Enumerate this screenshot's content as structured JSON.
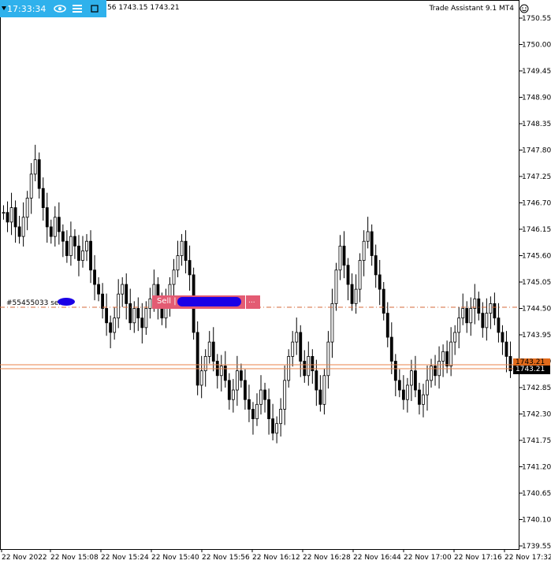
{
  "header": {
    "clock": "17:33:34",
    "ohlc_text": "56 1743.15 1743.21",
    "assistant_title": "Trade Assistant 9.1 MT4",
    "icons": [
      "triangle-down-icon",
      "eye-icon",
      "menu-icon",
      "minimize-icon",
      "smiley-icon"
    ]
  },
  "trade": {
    "ticket_label": "#55455033 sell",
    "sell_label": "Sell |",
    "more_label": "..."
  },
  "price_axis": {
    "ticks": [
      "1750.55",
      "1750.00",
      "1749.45",
      "1748.90",
      "1748.35",
      "1747.80",
      "1747.25",
      "1746.70",
      "1746.15",
      "1745.60",
      "1745.05",
      "1744.50",
      "1743.95",
      "1743.40",
      "1742.85",
      "1742.30",
      "1741.75",
      "1741.20",
      "1740.65",
      "1740.10",
      "1739.55"
    ],
    "bid_tag": "1743.21",
    "ask_tag": "1743.21"
  },
  "time_axis": {
    "ticks": [
      "22 Nov 2022",
      "22 Nov 15:08",
      "22 Nov 15:24",
      "22 Nov 15:40",
      "22 Nov 15:56",
      "22 Nov 16:12",
      "22 Nov 16:28",
      "22 Nov 16:44",
      "22 Nov 17:00",
      "22 Nov 17:16",
      "22 Nov 17:32"
    ]
  },
  "colors": {
    "candle_up": "#ffffff",
    "candle_down": "#000000",
    "bid_line": "#e8834a",
    "ask_tag_bg": "#000000",
    "bid_tag_bg": "#e06a1b",
    "trade_line": "#d56a3a",
    "panel_bg": "#2fb1ec",
    "sell_box_bg": "#e35b73"
  },
  "chart_data": {
    "type": "candlestick",
    "ylim": [
      1739.55,
      1751.0
    ],
    "closes": [
      1746.5,
      1746.3,
      1746.6,
      1746.2,
      1746.0,
      1746.4,
      1746.8,
      1747.3,
      1747.6,
      1747.0,
      1746.6,
      1746.2,
      1746.0,
      1746.4,
      1746.1,
      1745.9,
      1745.6,
      1746.0,
      1745.8,
      1745.5,
      1745.7,
      1745.9,
      1745.3,
      1745.0,
      1744.8,
      1744.5,
      1744.2,
      1744.0,
      1744.3,
      1744.8,
      1745.0,
      1744.6,
      1744.2,
      1744.5,
      1744.3,
      1744.1,
      1744.5,
      1744.7,
      1745.0,
      1744.6,
      1744.3,
      1744.6,
      1745.0,
      1745.3,
      1745.6,
      1745.9,
      1745.5,
      1745.2,
      1744.0,
      1742.9,
      1743.2,
      1743.5,
      1743.8,
      1743.4,
      1743.1,
      1743.3,
      1743.0,
      1742.6,
      1742.8,
      1743.2,
      1743.0,
      1742.6,
      1742.4,
      1742.2,
      1742.5,
      1742.8,
      1742.6,
      1742.2,
      1741.9,
      1742.1,
      1742.4,
      1743.0,
      1743.5,
      1743.8,
      1744.0,
      1743.4,
      1743.1,
      1743.5,
      1743.2,
      1742.8,
      1742.5,
      1743.1,
      1743.8,
      1744.6,
      1745.3,
      1745.8,
      1745.4,
      1745.0,
      1744.6,
      1744.9,
      1745.5,
      1745.9,
      1746.1,
      1745.6,
      1745.2,
      1744.9,
      1744.4,
      1743.9,
      1743.4,
      1743.0,
      1742.8,
      1742.6,
      1742.9,
      1743.2,
      1742.8,
      1742.5,
      1742.7,
      1743.0,
      1743.3,
      1743.1,
      1743.4,
      1743.6,
      1743.3,
      1743.8,
      1744.0,
      1744.3,
      1744.5,
      1744.2,
      1744.5,
      1744.7,
      1744.4,
      1744.1,
      1744.4,
      1744.6,
      1744.3,
      1744.0,
      1743.8,
      1743.5,
      1743.2
    ]
  }
}
